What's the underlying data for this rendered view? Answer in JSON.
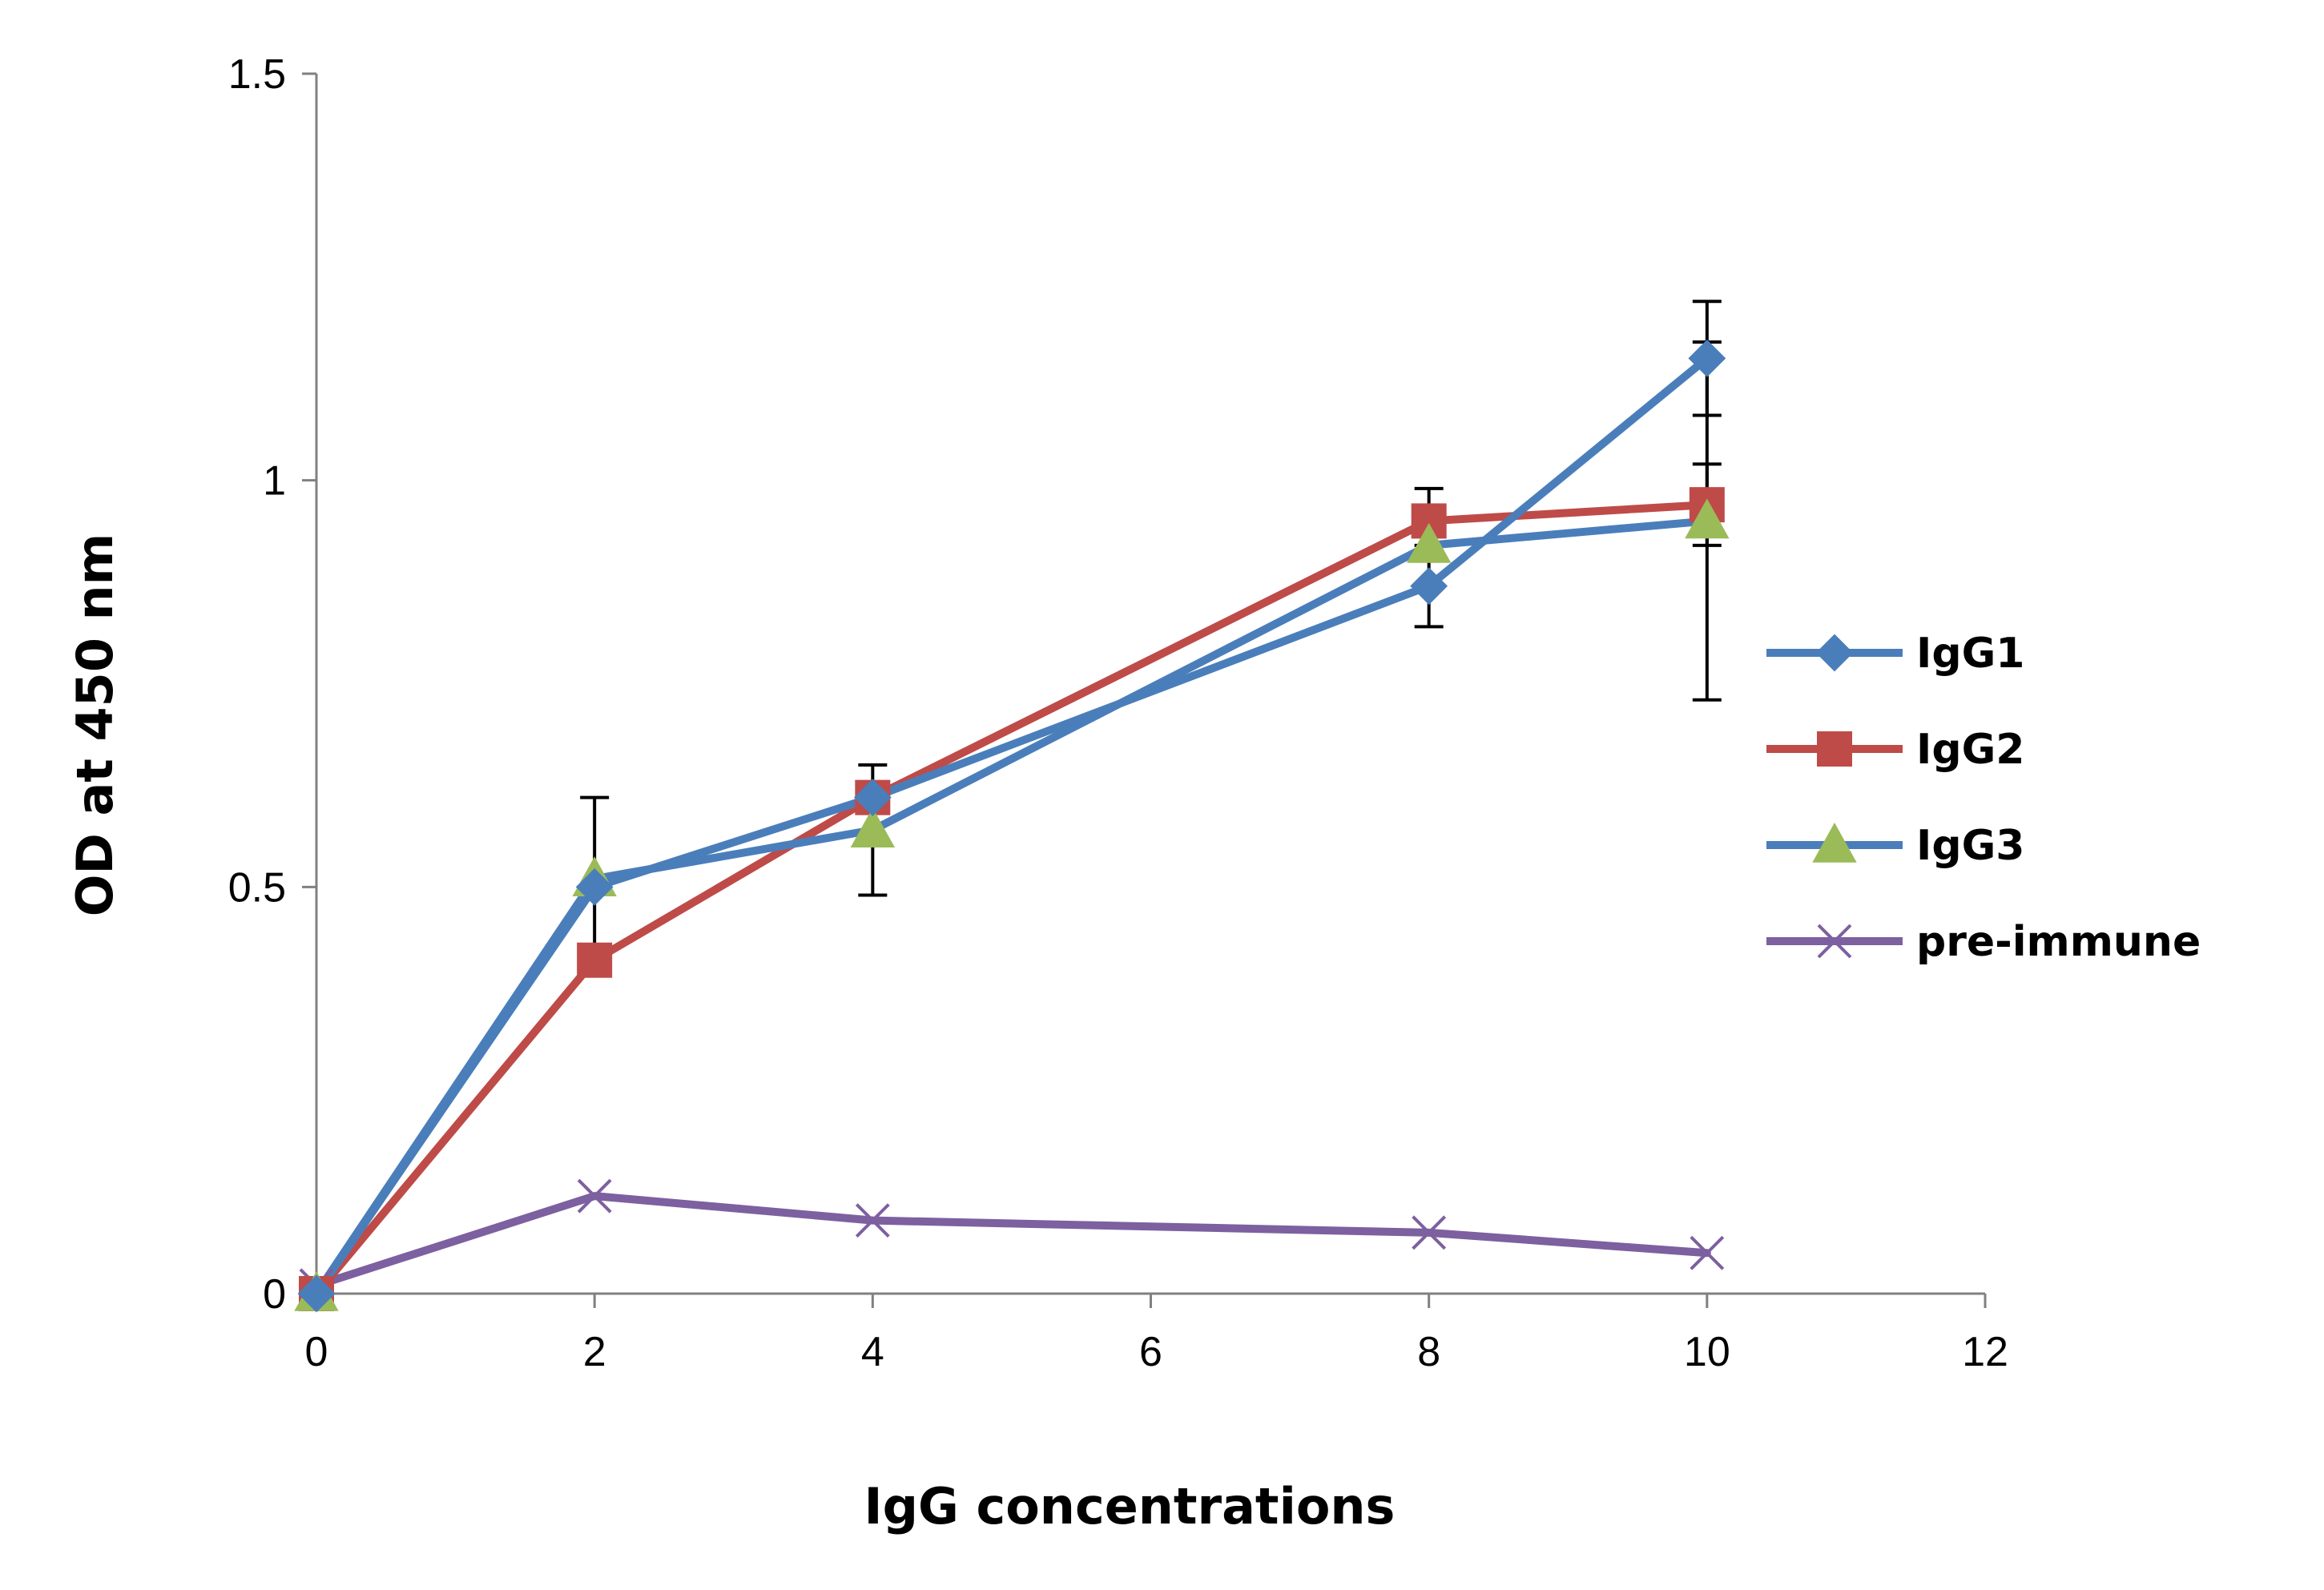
{
  "chart_data": {
    "type": "line",
    "title": "",
    "xlabel": "IgG concentrations",
    "ylabel": "OD at 450 nm",
    "xlim": [
      0,
      12
    ],
    "ylim": [
      0,
      1.5
    ],
    "xticks": [
      0,
      2,
      4,
      6,
      8,
      10,
      12
    ],
    "yticks": [
      0,
      0.5,
      1,
      1.5
    ],
    "xtick_labels": [
      "0",
      "2",
      "4",
      "6",
      "8",
      "10",
      "12"
    ],
    "ytick_labels": [
      "0",
      "0.5",
      "1",
      "1.5"
    ],
    "grid": false,
    "legend_position": "right",
    "x": [
      0,
      2,
      4,
      8,
      10
    ],
    "series": [
      {
        "name": "IgG1",
        "values": [
          0.0,
          0.5,
          0.61,
          0.87,
          1.15
        ],
        "error": [
          0,
          0,
          0,
          0.05,
          0.07
        ],
        "line_color": "#4a7ebb",
        "marker": "diamond",
        "marker_color": "#4a7ebb"
      },
      {
        "name": "IgG2",
        "values": [
          0.0,
          0.41,
          0.61,
          0.95,
          0.97
        ],
        "error": [
          0,
          0,
          0,
          0.04,
          0.05
        ],
        "line_color": "#be4b48",
        "marker": "square",
        "marker_color": "#be4b48"
      },
      {
        "name": "IgG3",
        "values": [
          0.0,
          0.51,
          0.57,
          0.92,
          0.95
        ],
        "error": [
          0,
          0.1,
          0.08,
          0,
          0.22
        ],
        "line_color": "#4a7ebb",
        "marker": "triangle",
        "marker_color": "#9bbb59"
      },
      {
        "name": "pre-immune",
        "values": [
          0.01,
          0.12,
          0.09,
          0.075,
          0.05
        ],
        "error": [
          0,
          0,
          0,
          0,
          0
        ],
        "line_color": "#7d60a0",
        "marker": "x",
        "marker_color": "#7d60a0"
      }
    ],
    "error_bar_color": "#000000"
  }
}
